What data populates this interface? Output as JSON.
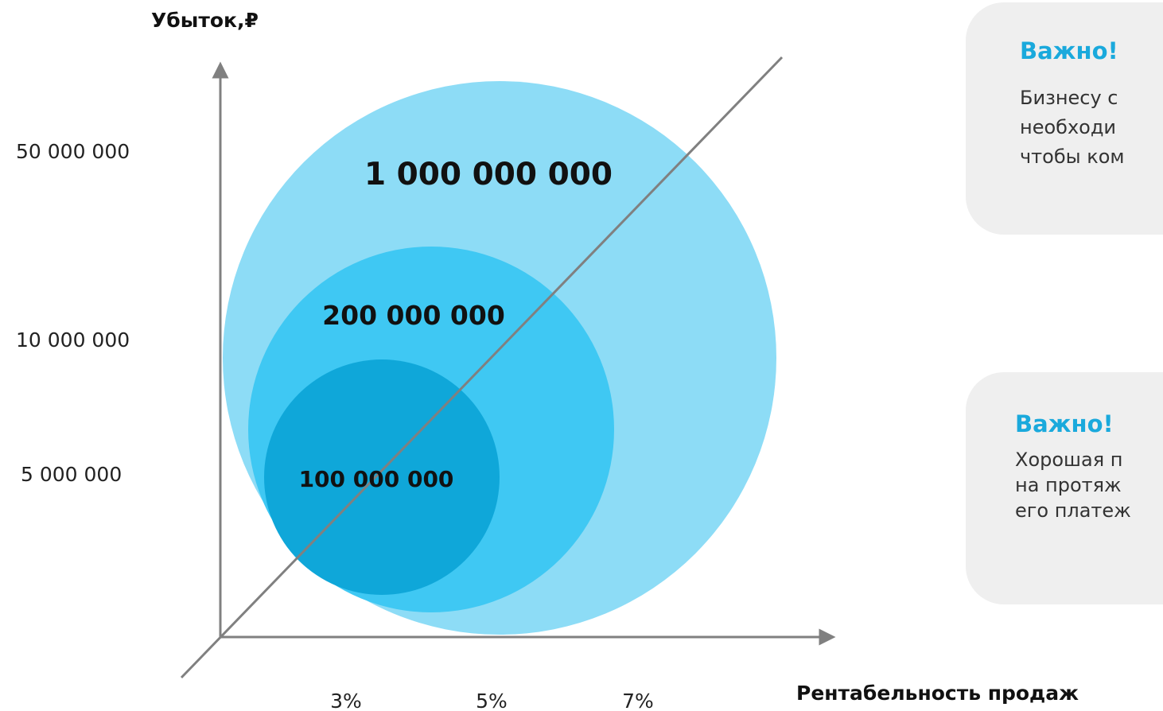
{
  "y_axis": {
    "title": "Убыток,₽",
    "ticks": [
      "50 000 000",
      "10 000 000",
      "5 000 000"
    ]
  },
  "x_axis": {
    "title": "Рентабельность продаж",
    "ticks": [
      "3%",
      "5%",
      "7%"
    ]
  },
  "bubbles": [
    {
      "label": "1 000 000 000",
      "color": "#8ddcf6"
    },
    {
      "label": "200 000 000",
      "color": "#3fc8f3"
    },
    {
      "label": "100 000 000",
      "color": "#0fa7d9"
    }
  ],
  "colors": {
    "axis": "#808080",
    "note_background": "#efefef",
    "note_title": "#1aa9dc"
  },
  "notes": [
    {
      "title": "Важно!",
      "lines": [
        "Бизнесу с",
        "необходи",
        "чтобы ком"
      ]
    },
    {
      "title": "Важно!",
      "lines": [
        "Хорошая п",
        "на протяж",
        "его платеж"
      ]
    }
  ]
}
